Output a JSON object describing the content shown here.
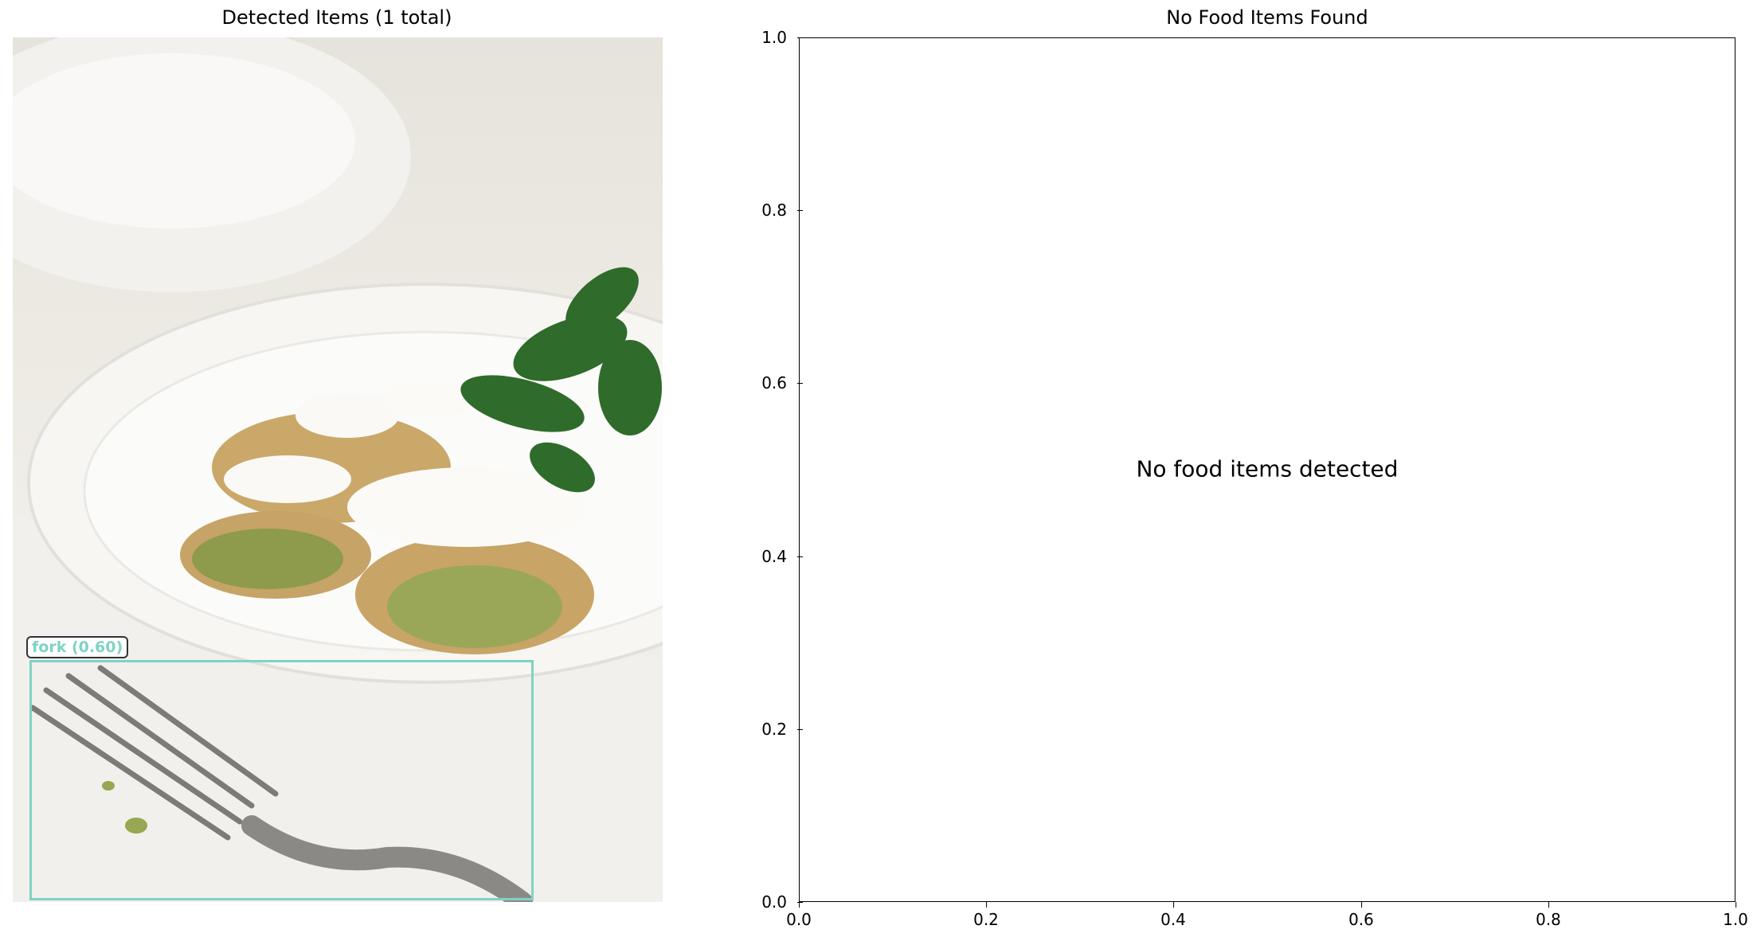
{
  "panels": {
    "left_title": "Detected Items (1 total)",
    "right_title": "No Food Items Found"
  },
  "detection": {
    "label": "fork (0.60)",
    "box_color": "#7fd3c4"
  },
  "message": "No food items detected",
  "chart_data": {
    "type": "scatter",
    "title": "No Food Items Found",
    "xlabel": "",
    "ylabel": "",
    "xlim": [
      0.0,
      1.0
    ],
    "ylim": [
      0.0,
      1.0
    ],
    "series": [],
    "annotations": [
      "No food items detected"
    ],
    "grid": false,
    "xticks": [
      "0.0",
      "0.2",
      "0.4",
      "0.6",
      "0.8",
      "1.0"
    ],
    "yticks": [
      "0.0",
      "0.2",
      "0.4",
      "0.6",
      "0.8",
      "1.0"
    ]
  }
}
